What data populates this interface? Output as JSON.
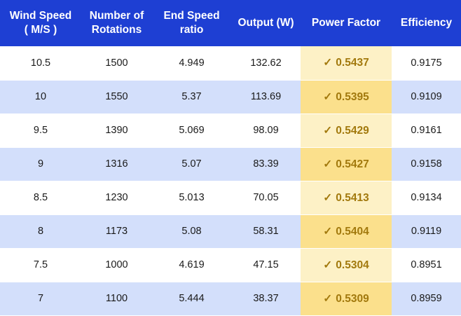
{
  "table": {
    "headers": [
      {
        "line1": "Wind Speed",
        "line2": "( M/S )"
      },
      {
        "line1": "Number of",
        "line2": "Rotations"
      },
      {
        "line1": "End Speed",
        "line2": "ratio"
      },
      {
        "line1": "Output (W)",
        "line2": ""
      },
      {
        "line1": "Power Factor",
        "line2": ""
      },
      {
        "line1": "Efficiency",
        "line2": ""
      }
    ],
    "check_glyph": "✓",
    "colors": {
      "header_bg": "#1e3fd3",
      "row_alt_bg": "#d3dffb",
      "highlight_light": "#fdf1c6",
      "highlight_dark": "#fbe08c",
      "highlight_text": "#a2790d"
    },
    "rows": [
      {
        "wind_speed": "10.5",
        "rotations": "1500",
        "end_speed_ratio": "4.949",
        "output": "132.62",
        "power_factor": "0.5437",
        "efficiency": "0.9175"
      },
      {
        "wind_speed": "10",
        "rotations": "1550",
        "end_speed_ratio": "5.37",
        "output": "113.69",
        "power_factor": "0.5395",
        "efficiency": "0.9109"
      },
      {
        "wind_speed": "9.5",
        "rotations": "1390",
        "end_speed_ratio": "5.069",
        "output": "98.09",
        "power_factor": "0.5429",
        "efficiency": "0.9161"
      },
      {
        "wind_speed": "9",
        "rotations": "1316",
        "end_speed_ratio": "5.07",
        "output": "83.39",
        "power_factor": "0.5427",
        "efficiency": "0.9158"
      },
      {
        "wind_speed": "8.5",
        "rotations": "1230",
        "end_speed_ratio": "5.013",
        "output": "70.05",
        "power_factor": "0.5413",
        "efficiency": "0.9134"
      },
      {
        "wind_speed": "8",
        "rotations": "1173",
        "end_speed_ratio": "5.08",
        "output": "58.31",
        "power_factor": "0.5404",
        "efficiency": "0.9119"
      },
      {
        "wind_speed": "7.5",
        "rotations": "1000",
        "end_speed_ratio": "4.619",
        "output": "47.15",
        "power_factor": "0.5304",
        "efficiency": "0.8951"
      },
      {
        "wind_speed": "7",
        "rotations": "1100",
        "end_speed_ratio": "5.444",
        "output": "38.37",
        "power_factor": "0.5309",
        "efficiency": "0.8959"
      }
    ]
  }
}
